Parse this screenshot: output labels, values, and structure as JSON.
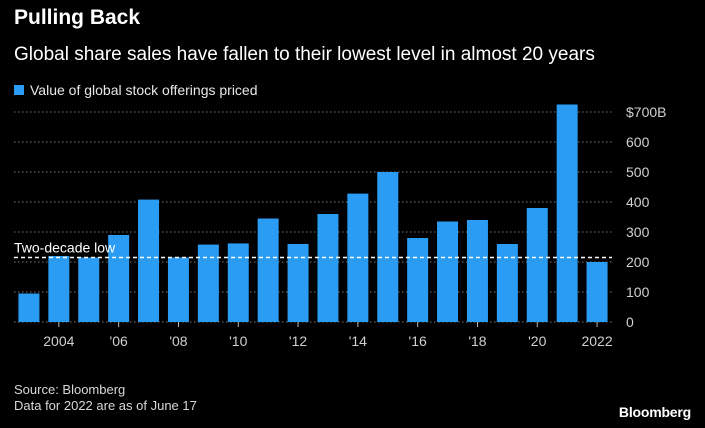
{
  "brand": "Bloomberg",
  "source_lines": [
    "Source: Bloomberg",
    "Data for 2022 are as of June 17"
  ],
  "colors": {
    "bar": "#2b9cf4",
    "grid": "#7a7a7a",
    "background": "#000000"
  },
  "chart_data": {
    "type": "bar",
    "title": "Pulling Back",
    "subtitle": "Global share sales have fallen to their lowest level in almost 20 years",
    "legend": [
      "Value of global stock offerings priced"
    ],
    "legend_position": "top-left",
    "xlabel": "",
    "ylabel": "",
    "ylim": [
      0,
      700
    ],
    "grid": true,
    "categories": [
      "2003",
      "2004",
      "2005",
      "2006",
      "2007",
      "2008",
      "2009",
      "2010",
      "2011",
      "2012",
      "2013",
      "2014",
      "2015",
      "2016",
      "2017",
      "2018",
      "2019",
      "2020",
      "2021",
      "2022"
    ],
    "series": [
      {
        "name": "Value of global stock offerings priced",
        "values": [
          95,
          220,
          215,
          290,
          408,
          215,
          258,
          262,
          345,
          260,
          360,
          428,
          500,
          280,
          335,
          340,
          260,
          380,
          725,
          200
        ]
      }
    ],
    "x_tick_labels": [
      "2004",
      "'06",
      "'08",
      "'10",
      "'12",
      "'14",
      "'16",
      "'18",
      "'20",
      "2022"
    ],
    "x_tick_categories": [
      "2004",
      "2006",
      "2008",
      "2010",
      "2012",
      "2014",
      "2016",
      "2018",
      "2020",
      "2022"
    ],
    "y_ticks": [
      0,
      100,
      200,
      300,
      400,
      500,
      600,
      700
    ],
    "y_tick_labels": [
      "0",
      "100",
      "200",
      "300",
      "400",
      "500",
      "600",
      "$700B"
    ],
    "annotations": [
      {
        "text": "Two-decade low",
        "value": 215
      }
    ]
  }
}
